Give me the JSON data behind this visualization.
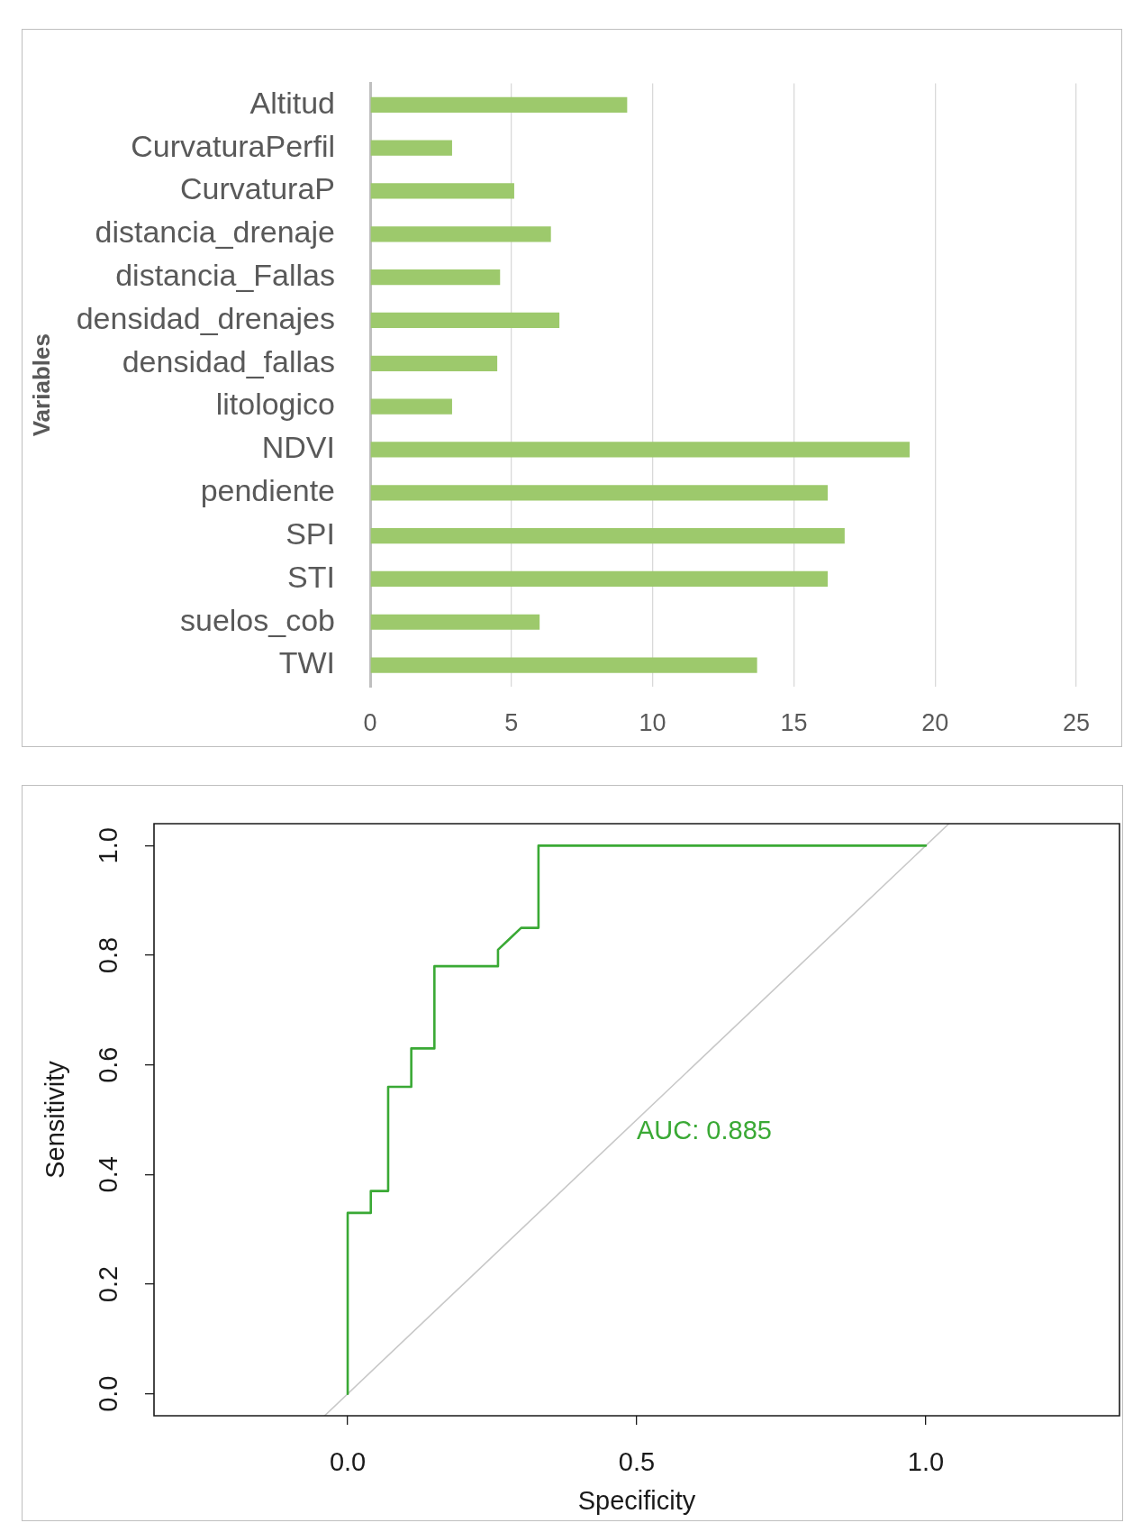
{
  "chart_data": [
    {
      "type": "bar",
      "orientation": "horizontal",
      "ylabel": "Variables",
      "categories": [
        "Altitud",
        "CurvaturaPerfil",
        "CurvaturaP",
        "distancia_drenaje",
        "distancia_Fallas",
        "densidad_drenajes",
        "densidad_fallas",
        "litologico",
        "NDVI",
        "pendiente",
        "SPI",
        "STI",
        "suelos_cob",
        "TWI"
      ],
      "values": [
        9.1,
        2.9,
        5.1,
        6.4,
        4.6,
        6.7,
        4.5,
        2.9,
        19.1,
        16.2,
        16.8,
        16.2,
        6.0,
        13.7
      ],
      "color": "#9dc96c",
      "xlim": [
        0,
        25
      ],
      "xticks": [
        0,
        5,
        10,
        15,
        20,
        25
      ],
      "grid": "x"
    },
    {
      "type": "line",
      "xlabel": "Specificity",
      "ylabel": "Sensitivity",
      "series": [
        {
          "color": "#3aa935",
          "x": [
            0,
            0,
            0.04,
            0.04,
            0.07,
            0.07,
            0.11,
            0.11,
            0.15,
            0.15,
            0.26,
            0.26,
            0.28,
            0.3,
            0.33,
            0.33,
            1.0
          ],
          "values": [
            0,
            0.33,
            0.33,
            0.37,
            0.37,
            0.56,
            0.56,
            0.63,
            0.63,
            0.78,
            0.78,
            0.81,
            0.83,
            0.85,
            0.85,
            1.0,
            1.0
          ]
        },
        {
          "color": "#c8c8c8",
          "x": [
            -0.04,
            1.04
          ],
          "values": [
            -0.04,
            1.04
          ]
        }
      ],
      "xlim": [
        -0.335,
        1.335
      ],
      "ylim": [
        -0.04,
        1.04
      ],
      "xticks": [
        {
          "value": 0,
          "label": "0.0"
        },
        {
          "value": 0.5,
          "label": "0.5"
        },
        {
          "value": 1,
          "label": "1.0"
        }
      ],
      "yticks": [
        {
          "value": 0,
          "label": "0.0"
        },
        {
          "value": 0.2,
          "label": "0.2"
        },
        {
          "value": 0.4,
          "label": "0.4"
        },
        {
          "value": 0.6,
          "label": "0.6"
        },
        {
          "value": 0.8,
          "label": "0.8"
        },
        {
          "value": 1,
          "label": "1.0"
        }
      ],
      "marker": "none",
      "annotations": [
        "AUC: 0.885"
      ]
    }
  ]
}
